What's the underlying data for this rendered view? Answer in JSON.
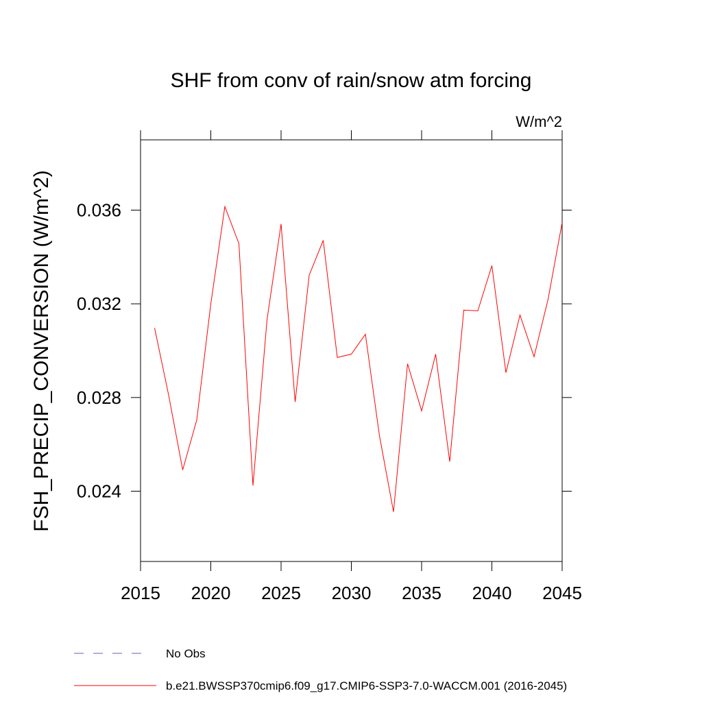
{
  "chart_data": {
    "type": "line",
    "title": "SHF from conv of rain/snow atm forcing",
    "units": "W/m^2",
    "y_label": "FSH_PRECIP_CONVERSION  (W/m^2)",
    "x": [
      2016,
      2017,
      2018,
      2019,
      2020,
      2021,
      2022,
      2023,
      2024,
      2025,
      2026,
      2027,
      2028,
      2029,
      2030,
      2031,
      2032,
      2033,
      2034,
      2035,
      2036,
      2037,
      2038,
      2039,
      2040,
      2041,
      2042,
      2043,
      2044,
      2045
    ],
    "series": [
      {
        "name": "b.e21.BWSSP370cmip6.f09_g17.CMIP6-SSP3-7.0-WACCM.001 (2016-2045)",
        "color": "#ff0000",
        "values": [
          0.03097,
          0.0281,
          0.02491,
          0.02704,
          0.032,
          0.03615,
          0.03457,
          0.02424,
          0.03132,
          0.03541,
          0.02781,
          0.03322,
          0.03471,
          0.02971,
          0.02985,
          0.0307,
          0.02637,
          0.02312,
          0.02944,
          0.02743,
          0.02985,
          0.02526,
          0.03173,
          0.0317,
          0.03363,
          0.02906,
          0.03152,
          0.02974,
          0.0322,
          0.03547
        ]
      }
    ],
    "legend_extra": {
      "name": "No Obs",
      "color": "#6a5acd",
      "dash": true
    },
    "xlim": [
      2015,
      2045
    ],
    "xticks": [
      2015,
      2020,
      2025,
      2030,
      2035,
      2040,
      2045
    ],
    "ylim": [
      0.021,
      0.039
    ],
    "yticks": [
      0.024,
      0.028,
      0.032,
      0.036
    ]
  }
}
